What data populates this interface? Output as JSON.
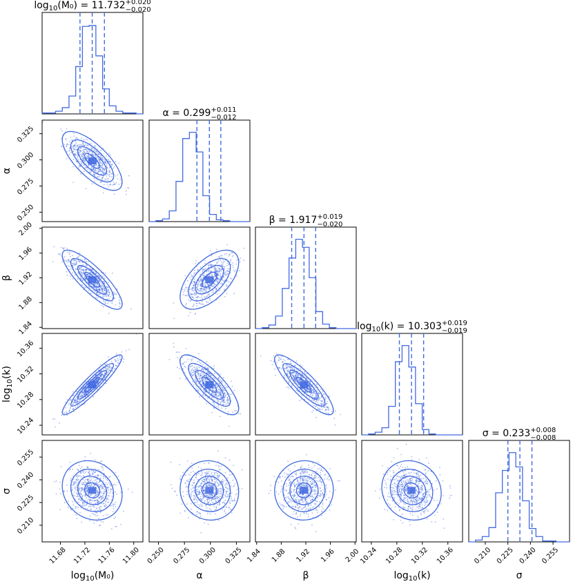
{
  "colors": {
    "accent": "#4169e1",
    "fill_light": "#eef2fd",
    "fill_mid": "#bccbf5",
    "fill_dark": "#6f8ee9"
  },
  "chart_data": {
    "type": "corner",
    "params": [
      {
        "key": "logM0",
        "label": "log10(M0)",
        "label_main": "log",
        "label_sub": "10",
        "label_tail": "(M₀)",
        "range": [
          11.65,
          11.815
        ],
        "ticks": [
          11.68,
          11.72,
          11.76,
          11.8
        ],
        "tick_labels": [
          "11.68",
          "11.72",
          "11.76",
          "11.80"
        ],
        "median": 11.732,
        "err_plus": 0.02,
        "err_minus": 0.02,
        "title_prefix": "log",
        "title_prefix_sub": "10",
        "title_var": "(M₀)",
        "title_value": "11.732",
        "title_plus": "+0.020",
        "title_minus": "−0.020",
        "hist": [
          1,
          1,
          3,
          7,
          20,
          53,
          98,
          99,
          65,
          28,
          9,
          3,
          1,
          1,
          0
        ]
      },
      {
        "key": "alpha",
        "label": "α",
        "label_main": "α",
        "label_sub": "",
        "label_tail": "",
        "range": [
          0.241,
          0.338
        ],
        "ticks": [
          0.25,
          0.275,
          0.3,
          0.325
        ],
        "tick_labels": [
          "0.250",
          "0.275",
          "0.300",
          "0.325"
        ],
        "median": 0.299,
        "err_plus": 0.011,
        "err_minus": 0.012,
        "title_prefix": "α",
        "title_prefix_sub": "",
        "title_var": "",
        "title_value": "0.299",
        "title_plus": "+0.011",
        "title_minus": "−0.012",
        "hist": [
          0,
          1,
          3,
          12,
          45,
          93,
          100,
          78,
          29,
          8,
          2,
          1,
          0,
          0,
          0
        ]
      },
      {
        "key": "beta",
        "label": "β",
        "label_main": "β",
        "label_sub": "",
        "label_tail": "",
        "range": [
          1.838,
          2.002
        ],
        "ticks": [
          1.84,
          1.88,
          1.92,
          1.96,
          2.0
        ],
        "tick_labels": [
          "1.84",
          "1.88",
          "1.92",
          "1.96",
          "2.00"
        ],
        "median": 1.917,
        "err_plus": 0.019,
        "err_minus": 0.02,
        "title_prefix": "β",
        "title_prefix_sub": "",
        "title_var": "",
        "title_value": "1.917",
        "title_plus": "+0.019",
        "title_minus": "−0.020",
        "hist": [
          0,
          1,
          4,
          14,
          45,
          79,
          100,
          91,
          57,
          19,
          5,
          1,
          0,
          0,
          0
        ]
      },
      {
        "key": "logk",
        "label": "log10(k)",
        "label_main": "log",
        "label_sub": "10",
        "label_tail": "(k)",
        "range": [
          10.225,
          10.383
        ],
        "ticks": [
          10.24,
          10.28,
          10.32,
          10.36
        ],
        "tick_labels": [
          "10.24",
          "10.28",
          "10.32",
          "10.36"
        ],
        "median": 10.303,
        "err_plus": 0.019,
        "err_minus": 0.019,
        "title_prefix": "log",
        "title_prefix_sub": "10",
        "title_var": "(k)",
        "title_value": "10.303",
        "title_plus": "+0.019",
        "title_minus": "−0.019",
        "hist": [
          0,
          1,
          3,
          8,
          32,
          82,
          100,
          76,
          35,
          6,
          1,
          0,
          0,
          0,
          0
        ]
      },
      {
        "key": "sigma",
        "label": "σ",
        "label_main": "σ",
        "label_sub": "",
        "label_tail": "",
        "range": [
          0.199,
          0.266
        ],
        "ticks": [
          0.21,
          0.225,
          0.24,
          0.255
        ],
        "tick_labels": [
          "0.210",
          "0.225",
          "0.240",
          "0.255"
        ],
        "median": 0.233,
        "err_plus": 0.008,
        "err_minus": 0.008,
        "title_prefix": "σ",
        "title_prefix_sub": "",
        "title_var": "",
        "title_value": "0.233",
        "title_plus": "+0.008",
        "title_minus": "−0.008",
        "hist": [
          0,
          2,
          6,
          16,
          55,
          80,
          100,
          84,
          46,
          15,
          6,
          1,
          1,
          0,
          0
        ]
      }
    ],
    "correlations": [
      [
        1.0,
        -0.72,
        -0.83,
        0.93,
        -0.15
      ],
      [
        -0.72,
        1.0,
        0.58,
        -0.79,
        -0.05
      ],
      [
        -0.83,
        0.58,
        1.0,
        -0.86,
        0.02
      ],
      [
        0.93,
        -0.79,
        -0.86,
        1.0,
        -0.1
      ],
      [
        -0.15,
        -0.05,
        0.02,
        -0.1,
        1.0
      ]
    ]
  }
}
